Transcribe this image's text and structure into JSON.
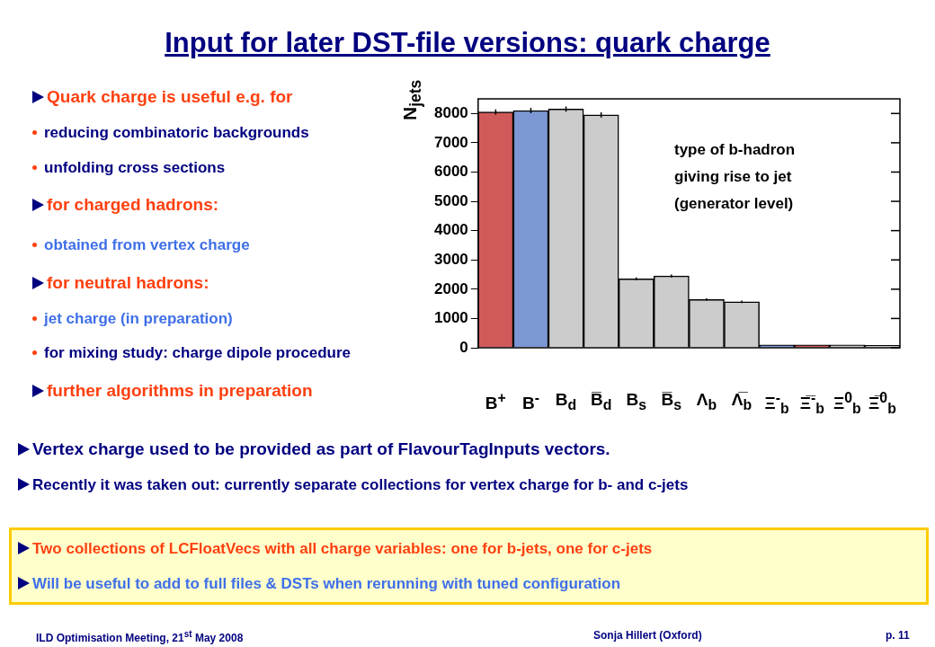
{
  "chart_data": {
    "type": "bar",
    "title": "Input for later DST-file versions: quark charge",
    "ylabel": "N$_{jets}$",
    "categories": [
      "B$^{+}$",
      "B$^{-}$",
      "B$_{d}$",
      "B̅$_{d}$",
      "B$_{s}$",
      "B̅$_{s}$",
      "Λ$_{b}$",
      "Λ̅$_{b}$",
      "Ξ$^{-}$$_{b}$",
      "Ξ̅$^{-}$$_{b}$",
      "Ξ$^{0}$$_{b}$",
      "Ξ̅$^{0}$$_{b}$"
    ],
    "values": [
      8050,
      8100,
      8150,
      7950,
      2350,
      2450,
      1650,
      1570,
      100,
      100,
      100,
      80
    ],
    "errors": [
      90,
      90,
      90,
      90,
      50,
      50,
      40,
      40,
      null,
      null,
      null,
      null
    ],
    "colors": [
      "#d05a5a",
      "#7b97d4",
      "#cccccc",
      "#cccccc",
      "#cccccc",
      "#cccccc",
      "#cccccc",
      "#cccccc",
      "#7b97d4",
      "#d05a5a",
      "#cccccc",
      "#cccccc"
    ],
    "ylim": [
      0,
      8500
    ],
    "yticks": [
      0,
      1000,
      2000,
      3000,
      4000,
      5000,
      6000,
      7000,
      8000
    ],
    "grid": false,
    "legend": false,
    "annotations": [
      "type of b-hadron giving rise to jet (generator level)",
      "Quark charge is useful e.g. for",
      "reducing combinatoric backgrounds",
      "unfolding cross sections",
      "for charged hadrons:",
      "obtained from vertex charge",
      "for neutral hadrons:",
      "jet charge (in preparation)",
      "for mixing study: charge dipole procedure",
      "further algorithms in preparation",
      "Vertex charge used to be provided as part of FlavourTagInputs vectors.",
      "Recently it was taken out: currently separate collections for vertex charge for b- and c-jets",
      "Two collections of LCFloatVecs with all charge variables: one for b-jets, one for c-jets",
      "Will be useful to add to full files & DSTs when rerunning with tuned configuration",
      "ILD Optimisation Meeting, 21$^{st}$ May 2008",
      "Sonja Hillert (Oxford)",
      "p. 11"
    ]
  }
}
